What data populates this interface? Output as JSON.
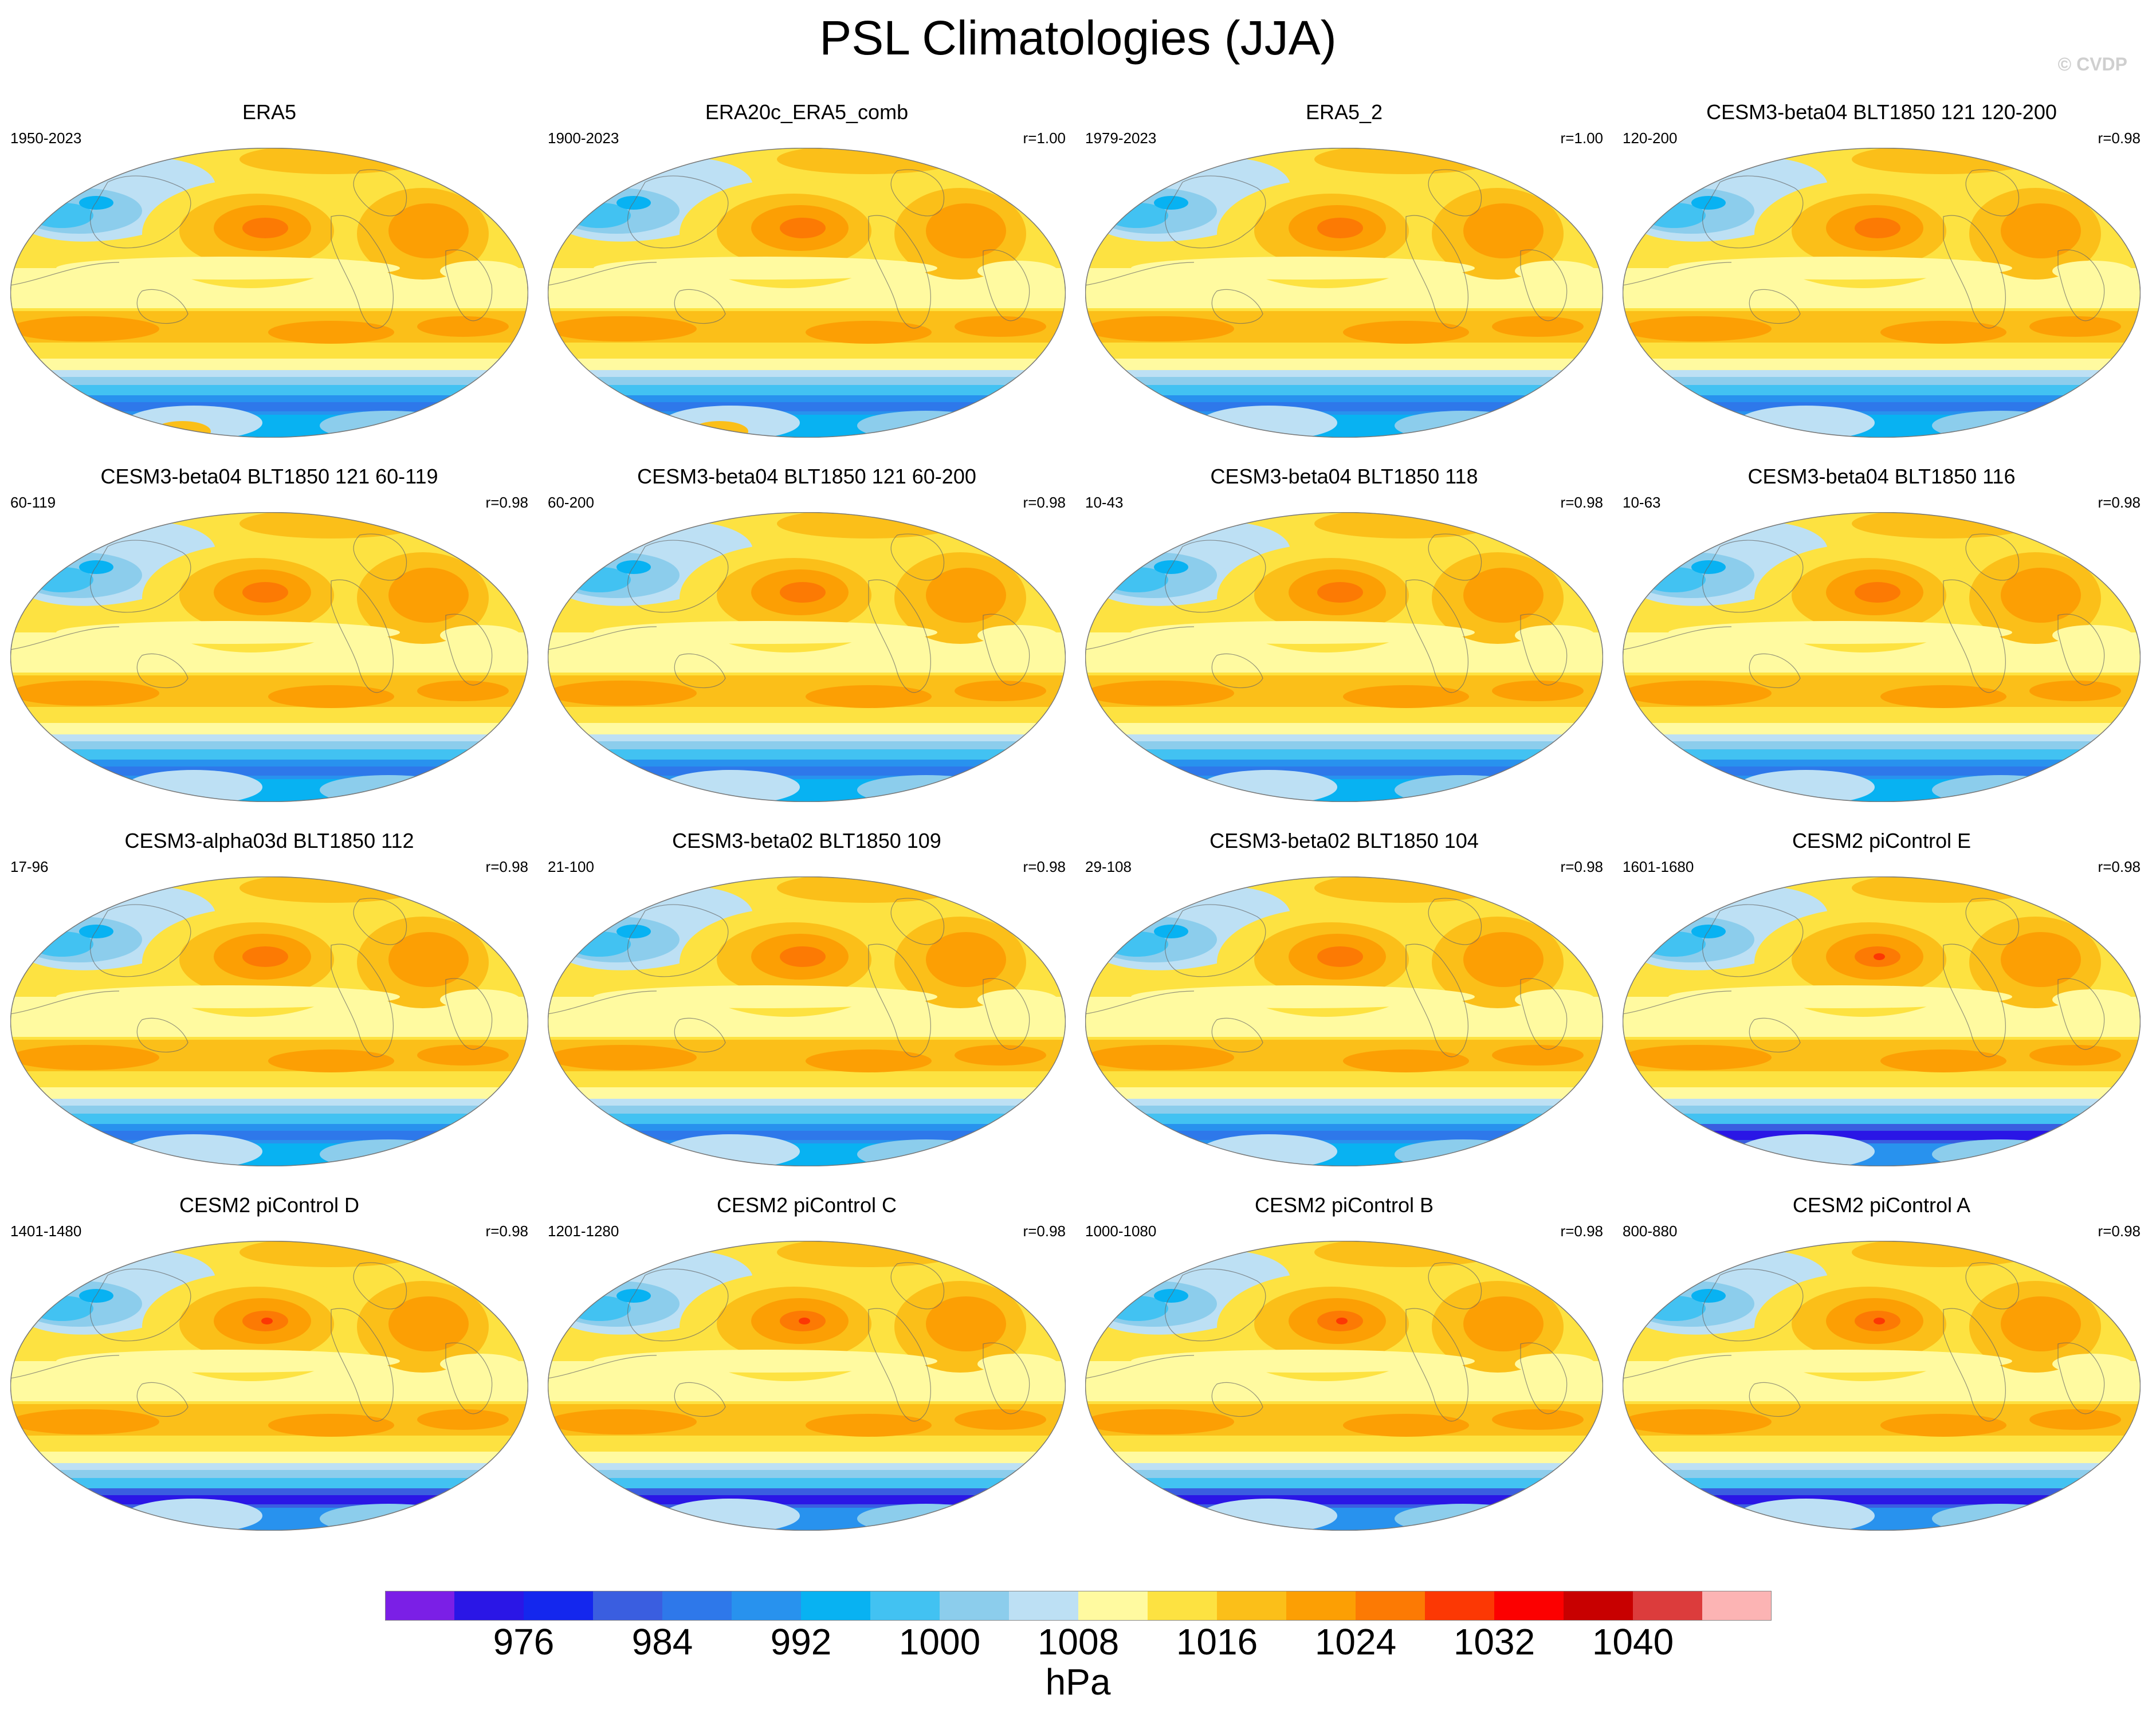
{
  "title": "PSL Climatologies (JJA)",
  "watermark": "© CVDP",
  "colorbar": {
    "unit": "hPa",
    "colors": [
      "#7b1fe6",
      "#2a16e6",
      "#1427ee",
      "#3a5ee0",
      "#2e78ea",
      "#2892ee",
      "#08b2f2",
      "#42c2f2",
      "#8ccdec",
      "#bde0f4",
      "#fffaa0",
      "#fde241",
      "#fbbf19",
      "#fc9f04",
      "#fc7a04",
      "#fc3804",
      "#fc0000",
      "#c80000",
      "#dc3c3c",
      "#fcb4b4"
    ],
    "labels": [
      "976",
      "984",
      "992",
      "1000",
      "1008",
      "1016",
      "1024",
      "1032",
      "1040"
    ]
  },
  "panels": [
    {
      "title": "ERA5",
      "years": "1950-2023",
      "r": ""
    },
    {
      "title": "ERA20c_ERA5_comb",
      "years": "1900-2023",
      "r": "r=1.00"
    },
    {
      "title": "ERA5_2",
      "years": "1979-2023",
      "r": "r=1.00"
    },
    {
      "title": "CESM3-beta04 BLT1850 121 120-200",
      "years": "120-200",
      "r": "r=0.98"
    },
    {
      "title": "CESM3-beta04 BLT1850 121 60-119",
      "years": "60-119",
      "r": "r=0.98"
    },
    {
      "title": "CESM3-beta04 BLT1850 121 60-200",
      "years": "60-200",
      "r": "r=0.98"
    },
    {
      "title": "CESM3-beta04 BLT1850 118",
      "years": "10-43",
      "r": "r=0.98"
    },
    {
      "title": "CESM3-beta04 BLT1850 116",
      "years": "10-63",
      "r": "r=0.98"
    },
    {
      "title": "CESM3-alpha03d BLT1850 112",
      "years": "17-96",
      "r": "r=0.98"
    },
    {
      "title": "CESM3-beta02 BLT1850 109",
      "years": "21-100",
      "r": "r=0.98"
    },
    {
      "title": "CESM3-beta02 BLT1850 104",
      "years": "29-108",
      "r": "r=0.98"
    },
    {
      "title": "CESM2 piControl E",
      "years": "1601-1680",
      "r": "r=0.98"
    },
    {
      "title": "CESM2 piControl D",
      "years": "1401-1480",
      "r": "r=0.98"
    },
    {
      "title": "CESM2 piControl C",
      "years": "1201-1280",
      "r": "r=0.98"
    },
    {
      "title": "CESM2 piControl B",
      "years": "1000-1080",
      "r": "r=0.98"
    },
    {
      "title": "CESM2 piControl A",
      "years": "800-880",
      "r": "r=0.98"
    }
  ]
}
